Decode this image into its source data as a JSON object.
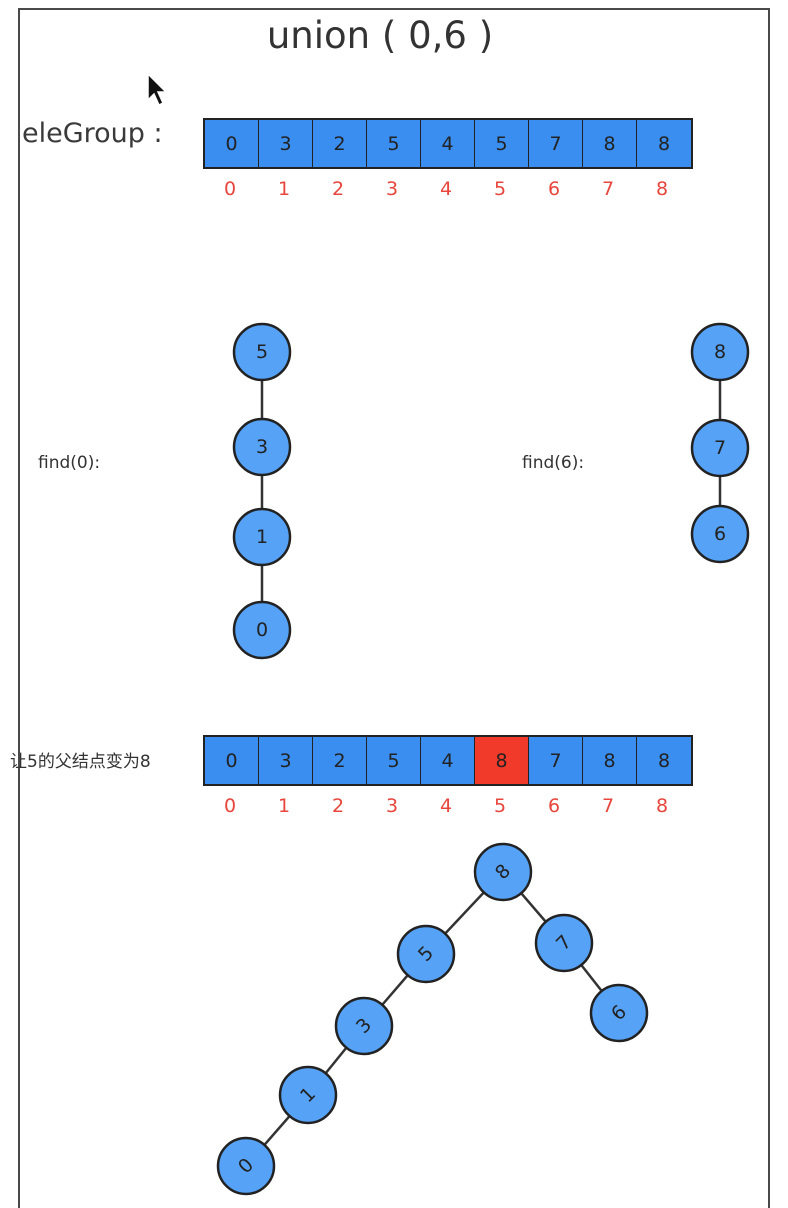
{
  "title": "union ( 0,6 )",
  "array_label": "eleGroup :",
  "array_before": {
    "values": [
      "0",
      "3",
      "2",
      "5",
      "4",
      "5",
      "7",
      "8",
      "8"
    ],
    "indices": [
      "0",
      "1",
      "2",
      "3",
      "4",
      "5",
      "6",
      "7",
      "8"
    ]
  },
  "find_left": {
    "label": "find(0):",
    "chain": [
      "5",
      "3",
      "1",
      "0"
    ]
  },
  "find_right": {
    "label": "find(6):",
    "chain": [
      "8",
      "7",
      "6"
    ]
  },
  "array_after": {
    "label": "让5的父结点变为8",
    "values": [
      "0",
      "3",
      "2",
      "5",
      "4",
      "8",
      "7",
      "8",
      "8"
    ],
    "indices": [
      "0",
      "1",
      "2",
      "3",
      "4",
      "5",
      "6",
      "7",
      "8"
    ],
    "highlight_index": 5,
    "highlight_color": "#f23a2a"
  },
  "merged_tree": {
    "root": "8",
    "left_chain": [
      "5",
      "3",
      "1",
      "0"
    ],
    "right_chain": [
      "7",
      "6"
    ]
  },
  "colors": {
    "cell": "#3a8ef0",
    "node": "#55a2f7",
    "index_text": "#e8453c"
  }
}
